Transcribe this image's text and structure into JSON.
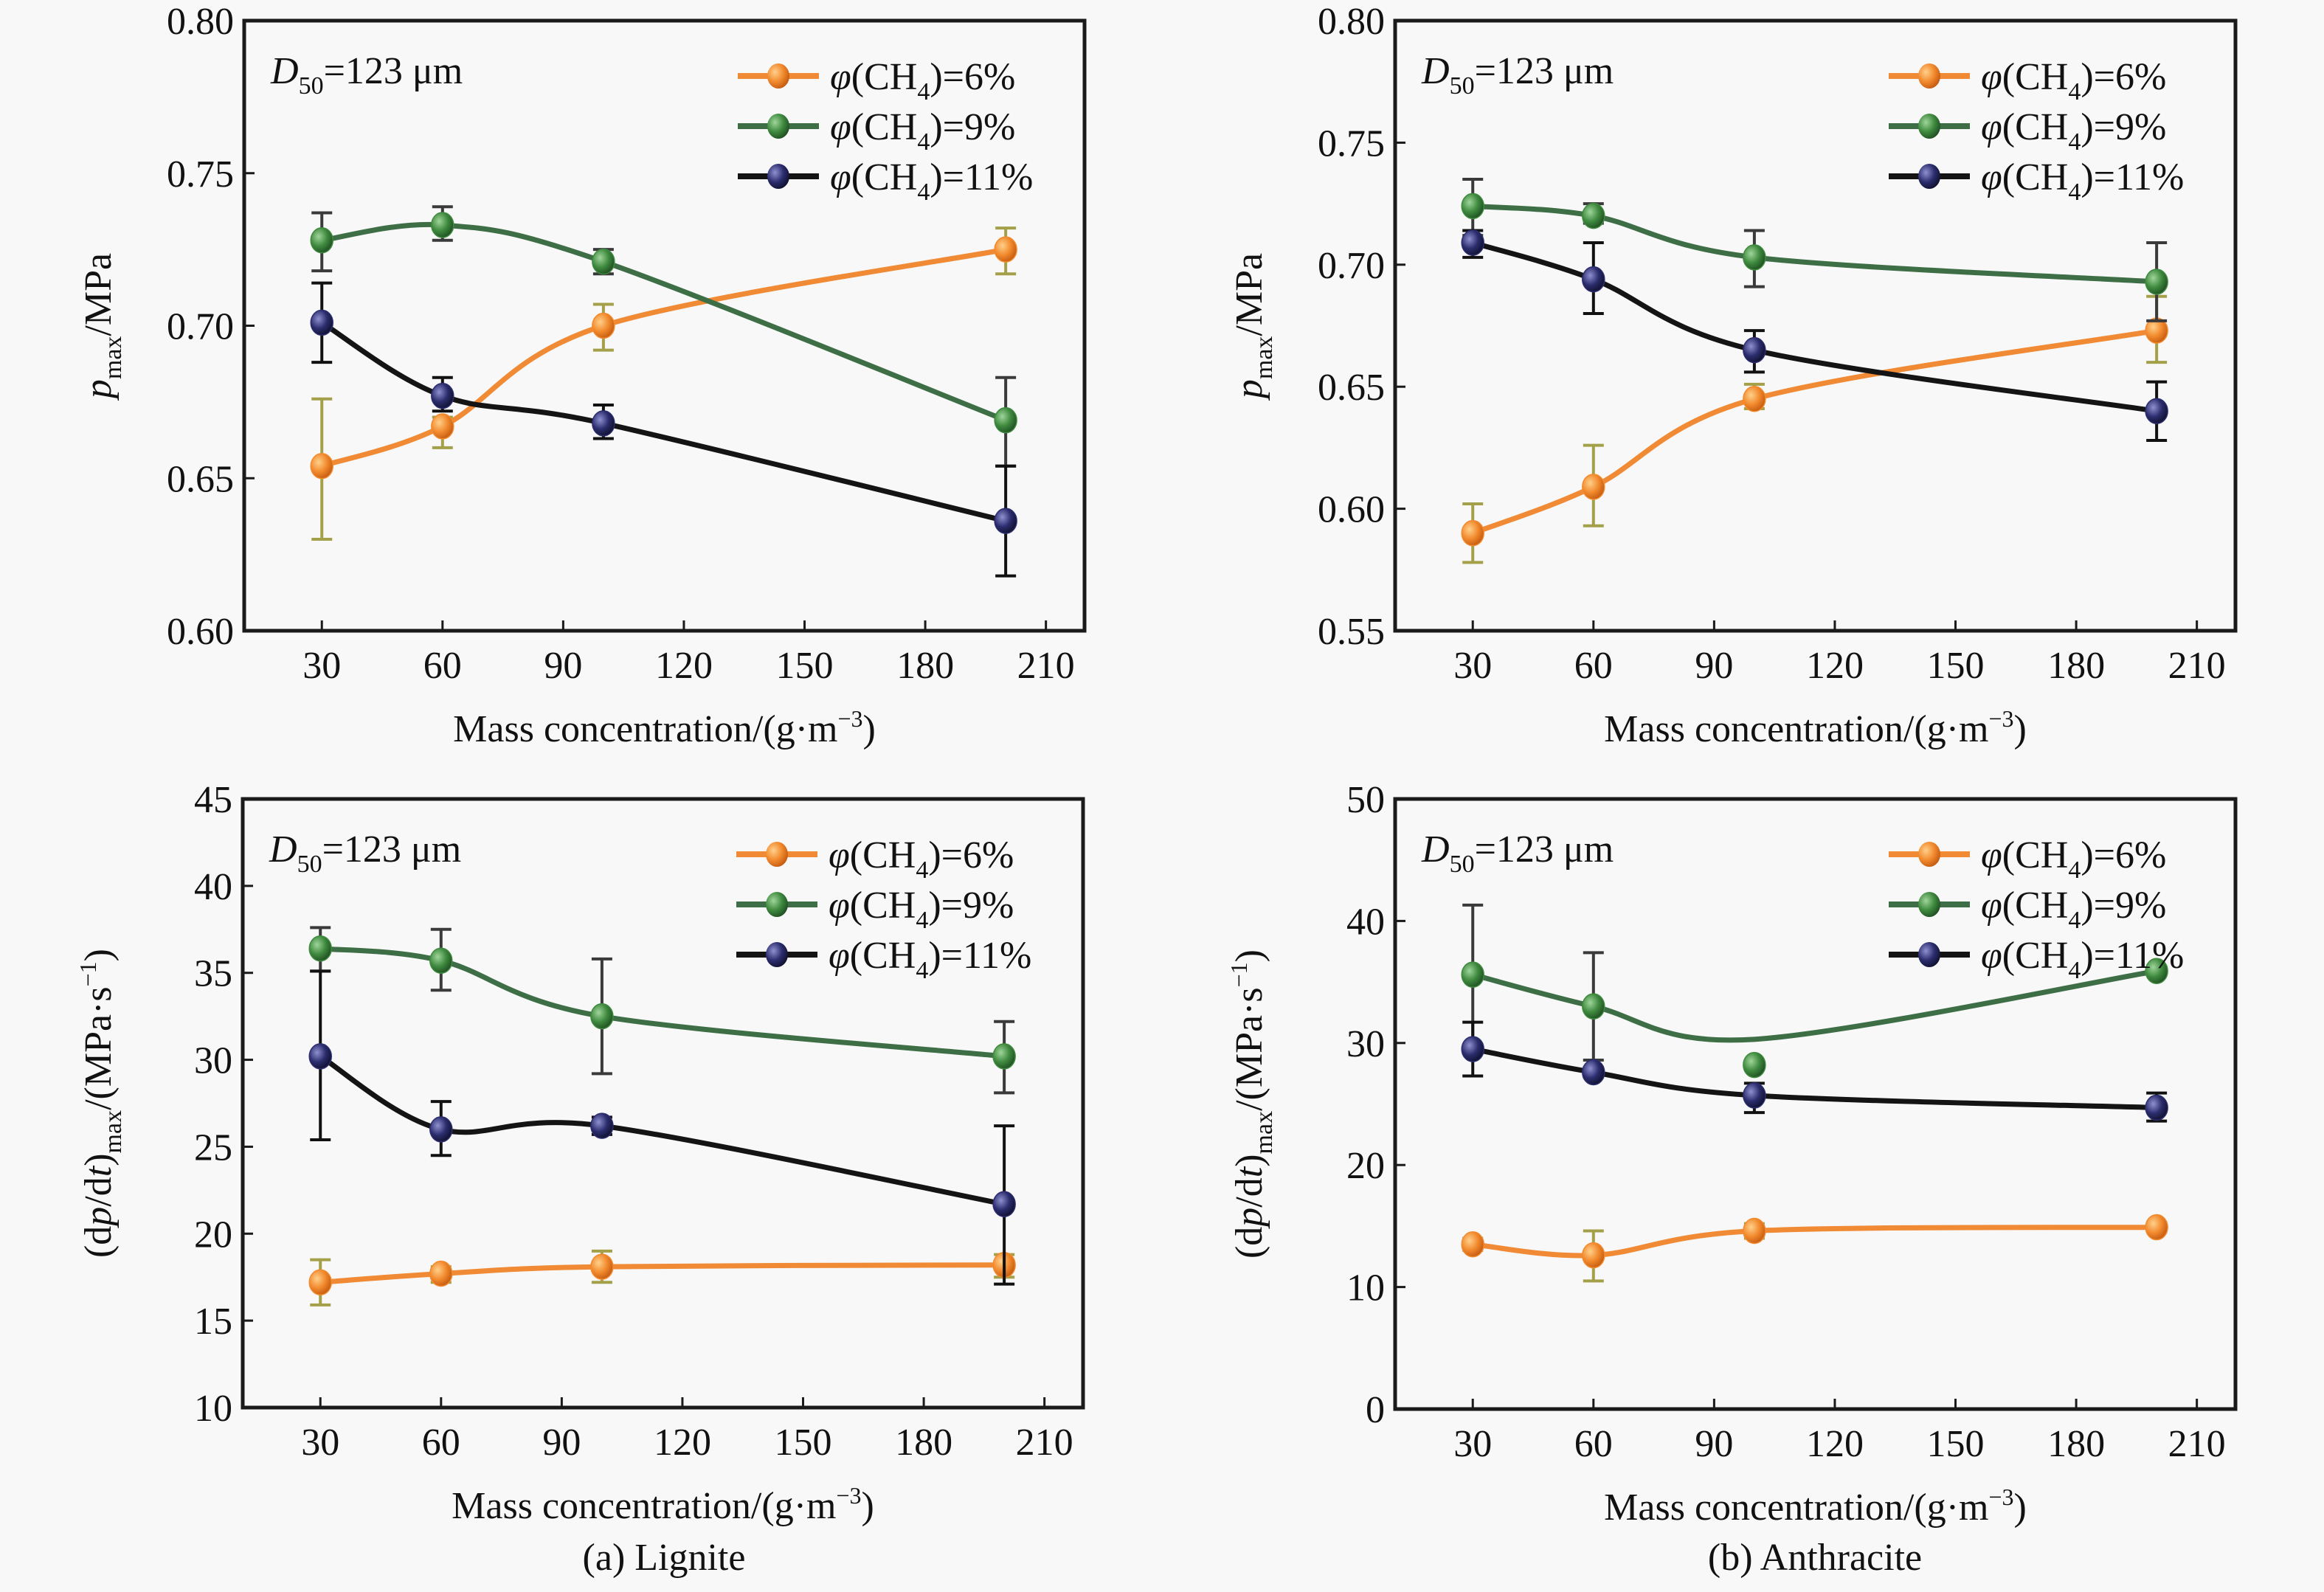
{
  "figure": {
    "captions": [
      "(a) Lignite",
      "(b) Anthracite"
    ]
  },
  "chart_data": [
    {
      "id": "a-pmax",
      "type": "line",
      "panel": "top-left",
      "coal": "Lignite",
      "title": "",
      "annotation": {
        "base": "D",
        "sub": "50",
        "rest": "=123 μm"
      },
      "xlabel": {
        "text": "Mass concentration/(g·m",
        "sup": "−3",
        "tail": ")"
      },
      "ylabel": {
        "base": "p",
        "sub": "max",
        "rest": "/MPa"
      },
      "x": [
        30,
        60,
        100,
        200
      ],
      "xlim": [
        10.7,
        219.6
      ],
      "xticks": [
        30,
        60,
        90,
        120,
        150,
        180,
        210
      ],
      "ylim": [
        0.6,
        0.8
      ],
      "yticks": [
        0.6,
        0.65,
        0.7,
        0.75,
        0.8
      ],
      "ytick_decimals": 2,
      "grid": false,
      "legend_position": "top-right",
      "series": [
        {
          "name": "φ(CH4)=6%",
          "label_pre": "φ(CH",
          "label_sub": "4",
          "label_post": ")=6%",
          "color": "#f28a2e",
          "line_color": "#f08a34",
          "values": [
            0.654,
            0.667,
            0.7,
            0.725
          ],
          "err_low": [
            0.63,
            0.66,
            0.692,
            0.717
          ],
          "err_high": [
            0.676,
            0.67,
            0.707,
            0.732
          ]
        },
        {
          "name": "φ(CH4)=9%",
          "label_pre": "φ(CH",
          "label_sub": "4",
          "label_post": ")=9%",
          "color": "#3f8a3f",
          "line_color": "#3d6e45",
          "values": [
            0.728,
            0.733,
            0.721,
            0.669
          ],
          "err_low": [
            0.718,
            0.728,
            0.717,
            0.654
          ],
          "err_high": [
            0.737,
            0.739,
            0.725,
            0.683
          ]
        },
        {
          "name": "φ(CH4)=11%",
          "label_pre": "φ(CH",
          "label_sub": "4",
          "label_post": ")=11%",
          "color": "#2b2d6e",
          "line_color": "#141414",
          "values": [
            0.701,
            0.677,
            0.668,
            0.636
          ],
          "err_low": [
            0.688,
            0.672,
            0.663,
            0.618
          ],
          "err_high": [
            0.714,
            0.683,
            0.674,
            0.654
          ]
        }
      ]
    },
    {
      "id": "b-pmax",
      "type": "line",
      "panel": "top-right",
      "coal": "Anthracite",
      "title": "",
      "annotation": {
        "base": "D",
        "sub": "50",
        "rest": "=123 μm"
      },
      "xlabel": {
        "text": "Mass concentration/(g·m",
        "sup": "−3",
        "tail": ")"
      },
      "ylabel": {
        "base": "p",
        "sub": "max",
        "rest": "/MPa"
      },
      "x": [
        30,
        60,
        100,
        200
      ],
      "xlim": [
        10.7,
        219.6
      ],
      "xticks": [
        30,
        60,
        90,
        120,
        150,
        180,
        210
      ],
      "ylim": [
        0.55,
        0.8
      ],
      "yticks": [
        0.55,
        0.6,
        0.65,
        0.7,
        0.75,
        0.8
      ],
      "ytick_decimals": 2,
      "grid": false,
      "legend_position": "top-right",
      "series": [
        {
          "name": "φ(CH4)=6%",
          "label_pre": "φ(CH",
          "label_sub": "4",
          "label_post": ")=6%",
          "color": "#f28a2e",
          "line_color": "#f08a34",
          "values": [
            0.59,
            0.609,
            0.645,
            0.673
          ],
          "err_low": [
            0.578,
            0.593,
            0.641,
            0.66
          ],
          "err_high": [
            0.602,
            0.626,
            0.651,
            0.687
          ]
        },
        {
          "name": "φ(CH4)=9%",
          "label_pre": "φ(CH",
          "label_sub": "4",
          "label_post": ")=9%",
          "color": "#3f8a3f",
          "line_color": "#3d6e45",
          "values": [
            0.724,
            0.72,
            0.703,
            0.693
          ],
          "err_low": [
            0.712,
            0.717,
            0.691,
            0.677
          ],
          "err_high": [
            0.735,
            0.725,
            0.714,
            0.709
          ]
        },
        {
          "name": "φ(CH4)=11%",
          "label_pre": "φ(CH",
          "label_sub": "4",
          "label_post": ")=11%",
          "color": "#2b2d6e",
          "line_color": "#141414",
          "values": [
            0.709,
            0.694,
            0.665,
            0.64
          ],
          "err_low": [
            0.703,
            0.68,
            0.656,
            0.628
          ],
          "err_high": [
            0.714,
            0.709,
            0.673,
            0.652
          ]
        }
      ]
    },
    {
      "id": "a-dpdt",
      "type": "line",
      "panel": "bottom-left",
      "coal": "Lignite",
      "title": "",
      "annotation": {
        "base": "D",
        "sub": "50",
        "rest": "=123 μm"
      },
      "xlabel": {
        "text": "Mass concentration/(g·m",
        "sup": "−3",
        "tail": ")"
      },
      "ylabel": {
        "pre": "(d",
        "italic1": "p",
        "mid": "/d",
        "italic2": "t",
        "close": ")",
        "sub": "max",
        "rest": "/(MPa·s",
        "sup": "−1",
        "tail": ")"
      },
      "x": [
        30,
        60,
        100,
        200
      ],
      "xlim": [
        10.7,
        219.6
      ],
      "xticks": [
        30,
        60,
        90,
        120,
        150,
        180,
        210
      ],
      "ylim": [
        10,
        45
      ],
      "yticks": [
        10,
        15,
        20,
        25,
        30,
        35,
        40,
        45
      ],
      "ytick_decimals": 0,
      "grid": false,
      "legend_position": "top-right",
      "series": [
        {
          "name": "φ(CH4)=6%",
          "label_pre": "φ(CH",
          "label_sub": "4",
          "label_post": ")=6%",
          "color": "#f28a2e",
          "line_color": "#f08a34",
          "values": [
            17.2,
            17.7,
            18.1,
            18.2
          ],
          "err_low": [
            15.9,
            17.2,
            17.2,
            17.5
          ],
          "err_high": [
            18.5,
            18.1,
            19.0,
            18.8
          ]
        },
        {
          "name": "φ(CH4)=9%",
          "label_pre": "φ(CH",
          "label_sub": "4",
          "label_post": ")=9%",
          "color": "#3f8a3f",
          "line_color": "#3d6e45",
          "values": [
            36.4,
            35.7,
            32.5,
            30.2
          ],
          "err_low": [
            35.1,
            34.0,
            29.2,
            28.1
          ],
          "err_high": [
            37.6,
            37.5,
            35.8,
            32.2
          ]
        },
        {
          "name": "φ(CH4)=11%",
          "label_pre": "φ(CH",
          "label_sub": "4",
          "label_post": ")=11%",
          "color": "#2b2d6e",
          "line_color": "#141414",
          "values": [
            30.2,
            26.0,
            26.2,
            21.7
          ],
          "err_low": [
            25.4,
            24.5,
            25.7,
            17.1
          ],
          "err_high": [
            35.1,
            27.6,
            26.7,
            26.2
          ]
        }
      ]
    },
    {
      "id": "b-dpdt",
      "type": "line",
      "panel": "bottom-right",
      "coal": "Anthracite",
      "title": "",
      "annotation": {
        "base": "D",
        "sub": "50",
        "rest": "=123 μm"
      },
      "xlabel": {
        "text": "Mass concentration/(g·m",
        "sup": "−3",
        "tail": ")"
      },
      "ylabel": {
        "pre": "(d",
        "italic1": "p",
        "mid": "/d",
        "italic2": "t",
        "close": ")",
        "sub": "max",
        "rest": "/(MPa·s",
        "sup": "−1",
        "tail": ")"
      },
      "x": [
        30,
        60,
        100,
        200
      ],
      "xlim": [
        10.7,
        219.6
      ],
      "xticks": [
        30,
        60,
        90,
        120,
        150,
        180,
        210
      ],
      "ylim": [
        0,
        50
      ],
      "yticks": [
        0,
        10,
        20,
        30,
        40,
        50
      ],
      "ytick_decimals": 0,
      "grid": false,
      "legend_position": "top-right",
      "series": [
        {
          "name": "φ(CH4)=6%",
          "label_pre": "φ(CH",
          "label_sub": "4",
          "label_post": ")=6%",
          "color": "#f28a2e",
          "line_color": "#f08a34",
          "values": [
            13.5,
            12.6,
            14.6,
            14.9
          ],
          "err_low": [
            13.0,
            10.5,
            14.0,
            14.5
          ],
          "err_high": [
            14.0,
            14.6,
            15.2,
            15.3
          ]
        },
        {
          "name": "φ(CH4)=9%",
          "label_pre": "φ(CH",
          "label_sub": "4",
          "label_post": ")=9%",
          "color": "#3f8a3f",
          "line_color": "#3d6e45",
          "values": [
            35.6,
            33.0,
            28.2,
            35.9
          ],
          "curve_values": [
            35.6,
            33.0,
            30.3,
            35.9
          ],
          "err_low": [
            29.9,
            28.6,
            28.2,
            35.9
          ],
          "err_high": [
            41.3,
            37.4,
            28.2,
            35.9
          ]
        },
        {
          "name": "φ(CH4)=11%",
          "label_pre": "φ(CH",
          "label_sub": "4",
          "label_post": ")=11%",
          "color": "#2b2d6e",
          "line_color": "#141414",
          "values": [
            29.5,
            27.6,
            25.7,
            24.7
          ],
          "err_low": [
            27.3,
            27.2,
            24.3,
            23.6
          ],
          "err_high": [
            31.7,
            28.0,
            26.7,
            25.9
          ]
        }
      ]
    }
  ]
}
